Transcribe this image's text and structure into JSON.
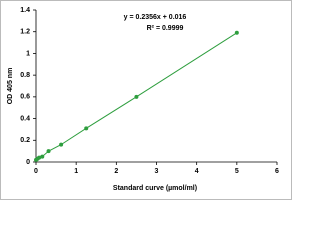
{
  "chart_data": {
    "type": "scatter",
    "x_label": "Standard curve (µmol/ml)",
    "y_label": "OD 405 nm",
    "annotations": [
      "y = 0.2356x + 0.016",
      "R² = 0.9999"
    ],
    "series": [
      {
        "color": "#2e9e3e",
        "x": [
          0,
          0.039,
          0.078,
          0.156,
          0.3125,
          0.625,
          1.25,
          2.5,
          5
        ],
        "values": [
          0.02,
          0.03,
          0.04,
          0.05,
          0.1,
          0.16,
          0.31,
          0.6,
          1.19
        ]
      }
    ],
    "connect": true,
    "xlim": [
      0,
      6
    ],
    "xticks": [
      0,
      1,
      2,
      3,
      4,
      5,
      6
    ],
    "ylim": [
      0,
      1.4
    ],
    "yticks": [
      0,
      0.2,
      0.4,
      0.6,
      0.8,
      1,
      1.2,
      1.4
    ],
    "grid": false
  }
}
